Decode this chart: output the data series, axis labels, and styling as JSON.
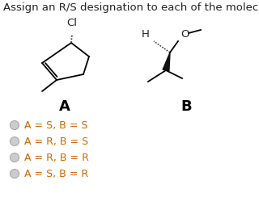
{
  "title": "Assign an R/S designation to each of the molecules below.",
  "title_fontsize": 9.5,
  "title_color": "#222222",
  "label_A": "A",
  "label_B": "B",
  "label_fontsize": 13,
  "options": [
    "A = S, B = S",
    "A = R, B = S",
    "A = R, B = R",
    "A = S, B = R"
  ],
  "options_fontsize": 9,
  "options_color": "#cc6600",
  "radio_color": "#cccccc",
  "radio_edge": "#aaaaaa",
  "bg_color": "#ffffff",
  "text_color": "#222222"
}
